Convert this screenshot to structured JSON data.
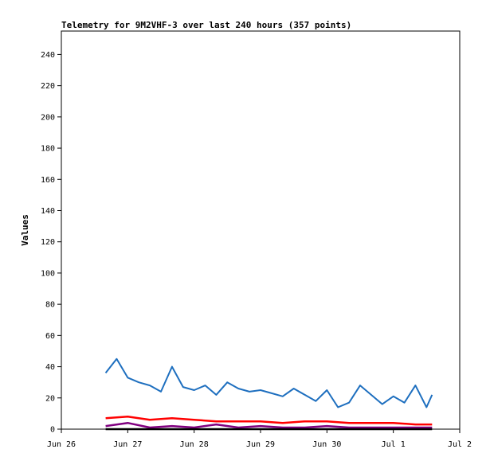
{
  "chart_data": {
    "type": "line",
    "title": "Telemetry for 9M2VHF-3 over last 240 hours (357 points)",
    "xlabel": "",
    "ylabel": "Values",
    "xlim": [
      "Jun 26",
      "Jul 2"
    ],
    "ylim": [
      0,
      255
    ],
    "x_tick_labels": [
      "Jun 26",
      "Jun 27",
      "Jun 28",
      "Jun 29",
      "Jun 30",
      "Jul 1",
      "Jul 2"
    ],
    "y_ticks": [
      0,
      20,
      40,
      60,
      80,
      100,
      120,
      140,
      160,
      180,
      200,
      220,
      240
    ],
    "grid": false,
    "legend": "none",
    "series": [
      {
        "color": "#1e6fbf",
        "x": [
          "Jun 26 16:00",
          "Jun 26 20:00",
          "Jun 27 00:00",
          "Jun 27 04:00",
          "Jun 27 08:00",
          "Jun 27 12:00",
          "Jun 27 16:00",
          "Jun 27 20:00",
          "Jun 28 00:00",
          "Jun 28 04:00",
          "Jun 28 08:00",
          "Jun 28 12:00",
          "Jun 28 16:00",
          "Jun 28 20:00",
          "Jun 29 00:00",
          "Jun 29 04:00",
          "Jun 29 08:00",
          "Jun 29 12:00",
          "Jun 29 16:00",
          "Jun 29 20:00",
          "Jun 30 00:00",
          "Jun 30 04:00",
          "Jun 30 08:00",
          "Jun 30 12:00",
          "Jun 30 16:00",
          "Jun 30 20:00",
          "Jul 1 00:00",
          "Jul 1 04:00",
          "Jul 1 08:00",
          "Jul 1 12:00",
          "Jul 1 14:00"
        ],
        "values": [
          36,
          45,
          33,
          30,
          28,
          24,
          40,
          27,
          25,
          28,
          22,
          30,
          26,
          24,
          25,
          23,
          21,
          26,
          22,
          18,
          25,
          14,
          17,
          28,
          22,
          16,
          21,
          17,
          28,
          14,
          22
        ]
      },
      {
        "color": "#ff0000",
        "x": [
          "Jun 26 16:00",
          "Jun 27 00:00",
          "Jun 27 08:00",
          "Jun 27 16:00",
          "Jun 28 00:00",
          "Jun 28 08:00",
          "Jun 28 16:00",
          "Jun 29 00:00",
          "Jun 29 08:00",
          "Jun 29 16:00",
          "Jun 30 00:00",
          "Jun 30 08:00",
          "Jun 30 16:00",
          "Jul 1 00:00",
          "Jul 1 08:00",
          "Jul 1 14:00"
        ],
        "values": [
          7,
          8,
          6,
          7,
          6,
          5,
          5,
          5,
          4,
          5,
          5,
          4,
          4,
          4,
          3,
          3
        ]
      },
      {
        "color": "#800080",
        "x": [
          "Jun 26 16:00",
          "Jun 27 00:00",
          "Jun 27 08:00",
          "Jun 27 16:00",
          "Jun 28 00:00",
          "Jun 28 08:00",
          "Jun 28 16:00",
          "Jun 29 00:00",
          "Jun 29 08:00",
          "Jun 29 16:00",
          "Jun 30 00:00",
          "Jun 30 08:00",
          "Jun 30 16:00",
          "Jul 1 00:00",
          "Jul 1 08:00",
          "Jul 1 14:00"
        ],
        "values": [
          2,
          4,
          1,
          2,
          1,
          3,
          1,
          2,
          1,
          1,
          2,
          1,
          1,
          1,
          1,
          1
        ]
      },
      {
        "color": "#000000",
        "x": [
          "Jun 26 16:00",
          "Jun 27 12:00",
          "Jun 28 12:00",
          "Jun 29 12:00",
          "Jun 30 12:00",
          "Jul 1 14:00"
        ],
        "values": [
          0,
          0,
          0,
          0,
          0,
          0
        ]
      }
    ]
  }
}
